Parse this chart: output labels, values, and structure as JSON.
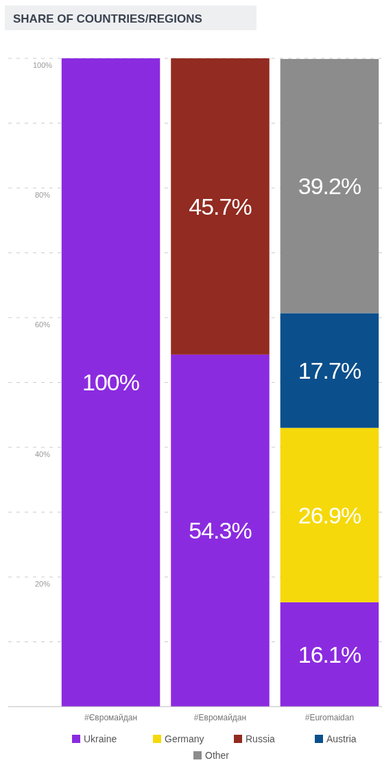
{
  "chart_data": {
    "type": "bar",
    "title": "SHARE OF COUNTRIES/REGIONS",
    "stacked": true,
    "categories": [
      "#Євромайдан",
      "#Евромайдан",
      "#Euromaidan"
    ],
    "series": [
      {
        "name": "Ukraine",
        "color": "#8b2be0",
        "values": [
          100,
          54.3,
          16.1
        ],
        "value_labels": [
          "100%",
          "54.3%",
          "16.1%"
        ]
      },
      {
        "name": "Germany",
        "color": "#f5d90a",
        "values": [
          null,
          null,
          26.9
        ],
        "value_labels": [
          null,
          null,
          "26.9%"
        ]
      },
      {
        "name": "Russia",
        "color": "#922b21",
        "values": [
          null,
          45.7,
          null
        ],
        "value_labels": [
          null,
          "45.7%",
          null
        ]
      },
      {
        "name": "Austria",
        "color": "#0b4f8c",
        "values": [
          null,
          null,
          17.7
        ],
        "value_labels": [
          null,
          null,
          "17.7%"
        ]
      },
      {
        "name": "Other",
        "color": "#8c8c8c",
        "values": [
          null,
          null,
          39.2
        ],
        "value_labels": [
          null,
          null,
          "39.2%"
        ]
      }
    ],
    "ylim": [
      0,
      100
    ],
    "yticks": [
      {
        "value": 10,
        "label": null
      },
      {
        "value": 20,
        "label": "20%"
      },
      {
        "value": 30,
        "label": null
      },
      {
        "value": 40,
        "label": "40%"
      },
      {
        "value": 50,
        "label": null
      },
      {
        "value": 60,
        "label": "60%"
      },
      {
        "value": 70,
        "label": null
      },
      {
        "value": 80,
        "label": "80%"
      },
      {
        "value": 90,
        "label": null
      },
      {
        "value": 100,
        "label": "100%"
      }
    ],
    "grid": "y",
    "legend": "bottom"
  }
}
